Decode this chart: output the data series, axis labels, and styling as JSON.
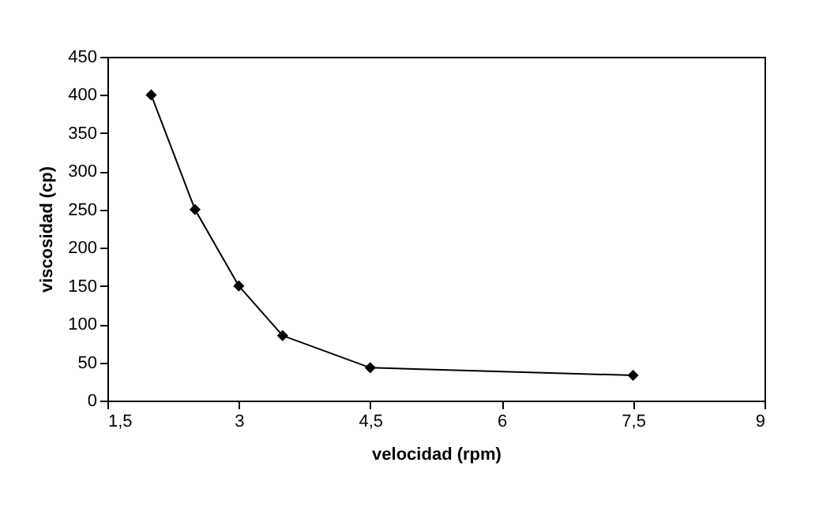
{
  "chart_data": {
    "type": "line",
    "xlabel": "velocidad (rpm)",
    "ylabel": "viscosidad (cp)",
    "x": [
      2,
      2.5,
      3,
      3.5,
      4.5,
      7.5
    ],
    "series": [
      {
        "color": "#000000",
        "values": [
          400,
          250,
          150,
          85,
          43,
          33
        ]
      }
    ],
    "xlim": [
      1.5,
      9
    ],
    "xticks": [
      {
        "value": 1.5,
        "label": "1,5"
      },
      3,
      {
        "value": 4.5,
        "label": "4,5"
      },
      6,
      {
        "value": 7.5,
        "label": "7,5"
      },
      9
    ],
    "ylim": [
      0,
      450
    ],
    "yticks": [
      0,
      50,
      100,
      150,
      200,
      250,
      300,
      350,
      400,
      450
    ],
    "marker": "diamond",
    "line_style": "solid",
    "grid": false
  }
}
